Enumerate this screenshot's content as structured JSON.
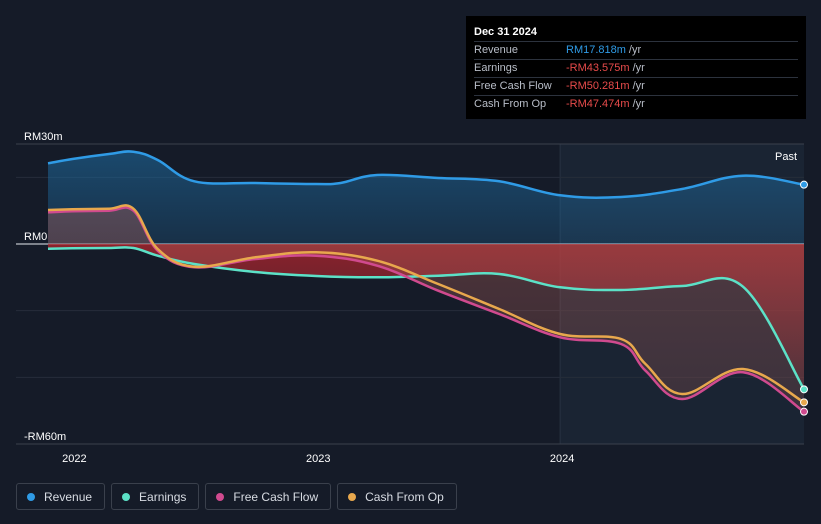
{
  "tooltip": {
    "date": "Dec 31 2024",
    "rows": [
      {
        "label": "Revenue",
        "value": "RM17.818m",
        "unit": "/yr",
        "color": "#2f9be6"
      },
      {
        "label": "Earnings",
        "value": "-RM43.575m",
        "unit": "/yr",
        "color": "#e84b4b"
      },
      {
        "label": "Free Cash Flow",
        "value": "-RM50.281m",
        "unit": "/yr",
        "color": "#e84b4b"
      },
      {
        "label": "Cash From Op",
        "value": "-RM47.474m",
        "unit": "/yr",
        "color": "#e84b4b"
      }
    ]
  },
  "past_label": "Past",
  "chart_data": {
    "type": "line",
    "ylim": [
      -60,
      30
    ],
    "y_tick_labels": [
      {
        "value": 30,
        "label": "RM30m"
      },
      {
        "value": 0,
        "label": "RM0"
      },
      {
        "value": -60,
        "label": "-RM60m"
      }
    ],
    "x_ticks": [
      {
        "value": 2022.0,
        "label": "2022"
      },
      {
        "value": 2023.0,
        "label": "2023"
      },
      {
        "value": 2024.0,
        "label": "2024"
      }
    ],
    "xlim": [
      2021.9,
      2025.0
    ],
    "highlight_start": 2024.0,
    "series": [
      {
        "name": "Revenue",
        "color": "#2f9be6",
        "x": [
          2021.9,
          2022.0,
          2022.15,
          2022.25,
          2022.35,
          2022.5,
          2022.75,
          2023.0,
          2023.1,
          2023.25,
          2023.5,
          2023.75,
          2024.0,
          2024.25,
          2024.5,
          2024.75,
          2025.0
        ],
        "y": [
          24.2,
          25.5,
          27.0,
          27.7,
          25.2,
          18.8,
          18.3,
          18.0,
          18.3,
          20.7,
          19.8,
          18.8,
          14.6,
          14.1,
          16.5,
          20.5,
          17.8
        ]
      },
      {
        "name": "Earnings",
        "color": "#5ce1c7",
        "x": [
          2021.9,
          2022.0,
          2022.15,
          2022.25,
          2022.35,
          2022.5,
          2022.75,
          2023.0,
          2023.25,
          2023.5,
          2023.75,
          2024.0,
          2024.25,
          2024.5,
          2024.75,
          2025.0
        ],
        "y": [
          -1.4,
          -1.3,
          -1.2,
          -1.2,
          -3.5,
          -6.0,
          -8.4,
          -9.6,
          -10.0,
          -9.5,
          -9.0,
          -13.0,
          -13.8,
          -12.6,
          -12.8,
          -43.6
        ]
      },
      {
        "name": "Free Cash Flow",
        "color": "#d04a8f",
        "x": [
          2021.9,
          2022.0,
          2022.15,
          2022.25,
          2022.35,
          2022.5,
          2022.75,
          2023.0,
          2023.25,
          2023.5,
          2023.75,
          2024.0,
          2024.25,
          2024.35,
          2024.5,
          2024.75,
          2025.0
        ],
        "y": [
          9.5,
          9.8,
          10.0,
          10.0,
          -2.0,
          -7.0,
          -4.5,
          -3.5,
          -6.5,
          -14.0,
          -21.0,
          -28.0,
          -30.0,
          -38.0,
          -46.5,
          -38.5,
          -50.3
        ]
      },
      {
        "name": "Cash From Op",
        "color": "#e8a84d",
        "x": [
          2021.9,
          2022.0,
          2022.15,
          2022.25,
          2022.35,
          2022.5,
          2022.75,
          2023.0,
          2023.25,
          2023.5,
          2023.75,
          2024.0,
          2024.25,
          2024.35,
          2024.5,
          2024.75,
          2025.0
        ],
        "y": [
          10.2,
          10.4,
          10.6,
          10.6,
          -1.5,
          -6.8,
          -4.0,
          -2.5,
          -5.0,
          -12.0,
          -19.5,
          -27.0,
          -28.5,
          -36.0,
          -45.0,
          -37.5,
          -47.5
        ]
      }
    ]
  },
  "legend": [
    {
      "name": "Revenue",
      "color": "#2f9be6"
    },
    {
      "name": "Earnings",
      "color": "#5ce1c7"
    },
    {
      "name": "Free Cash Flow",
      "color": "#d04a8f"
    },
    {
      "name": "Cash From Op",
      "color": "#e8a84d"
    }
  ]
}
